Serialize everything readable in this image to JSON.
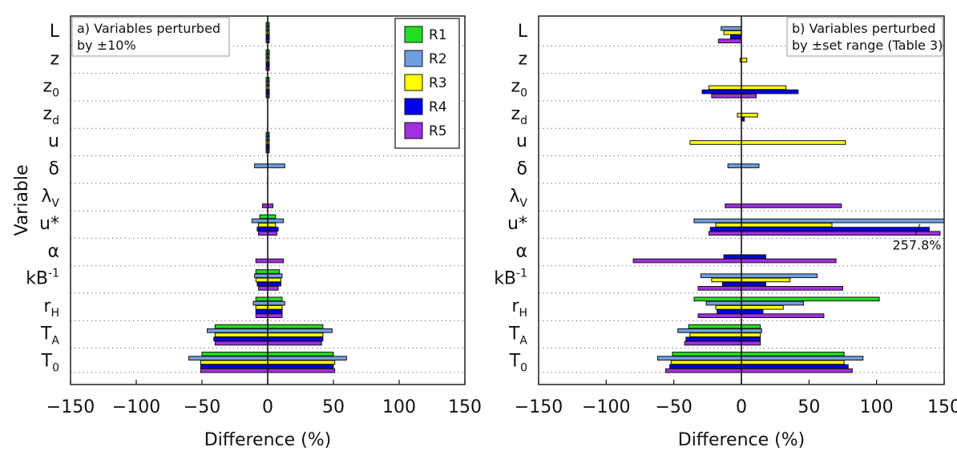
{
  "chart_data": [
    {
      "type": "bar",
      "orientation": "horizontal",
      "annotation_lines": [
        "a) Variables perturbed",
        "by ±10%"
      ],
      "xlabel": "Difference (%)",
      "ylabel": "Variable",
      "xlim": [
        -150,
        150
      ],
      "xticks": [
        -150,
        -100,
        -50,
        0,
        50,
        100,
        150
      ],
      "grid": "dotted horizontal separators",
      "legend_position": "top-right",
      "variables": [
        {
          "base": "L",
          "sub": "",
          "sup": ""
        },
        {
          "base": "z",
          "sub": "",
          "sup": ""
        },
        {
          "base": "z",
          "sub": "0",
          "sup": ""
        },
        {
          "base": "z",
          "sub": "d",
          "sup": ""
        },
        {
          "base": "u",
          "sub": "",
          "sup": ""
        },
        {
          "base": "δ",
          "sub": "",
          "sup": ""
        },
        {
          "base": "λ",
          "sub": "V",
          "sup": ""
        },
        {
          "base": "u*",
          "sub": "",
          "sup": ""
        },
        {
          "base": "α",
          "sub": "",
          "sup": ""
        },
        {
          "base": "kB",
          "sub": "",
          "sup": "-1"
        },
        {
          "base": "r",
          "sub": "H",
          "sup": ""
        },
        {
          "base": "T",
          "sub": "A",
          "sup": ""
        },
        {
          "base": "T",
          "sub": "0",
          "sup": ""
        }
      ],
      "series": [
        {
          "name": "R1",
          "color": "#22dd22",
          "ranges": [
            [
              -1,
              1
            ],
            [
              -1,
              1
            ],
            [
              -1,
              1
            ],
            [
              0,
              0
            ],
            [
              -1,
              1
            ],
            [
              0,
              0
            ],
            [
              0,
              0
            ],
            [
              -6,
              6
            ],
            [
              0,
              0
            ],
            [
              -9,
              9
            ],
            [
              -9,
              11
            ],
            [
              -40,
              42
            ],
            [
              -50,
              50
            ]
          ]
        },
        {
          "name": "R2",
          "color": "#6ea0e0",
          "ranges": [
            [
              -1,
              1
            ],
            [
              -1,
              1
            ],
            [
              -1,
              1
            ],
            [
              0,
              0
            ],
            [
              -1,
              1
            ],
            [
              -10,
              13
            ],
            [
              0,
              0
            ],
            [
              -12,
              12
            ],
            [
              0,
              0
            ],
            [
              -10,
              11
            ],
            [
              -11,
              13
            ],
            [
              -46,
              49
            ],
            [
              -60,
              60
            ]
          ]
        },
        {
          "name": "R3",
          "color": "#ffff00",
          "ranges": [
            [
              -1,
              1
            ],
            [
              -1,
              1
            ],
            [
              -1,
              1
            ],
            [
              0,
              0
            ],
            [
              -1,
              1
            ],
            [
              0,
              0
            ],
            [
              0,
              0
            ],
            [
              -7,
              6
            ],
            [
              0,
              0
            ],
            [
              -9,
              10
            ],
            [
              -9,
              11
            ],
            [
              -40,
              42
            ],
            [
              -51,
              51
            ]
          ]
        },
        {
          "name": "R4",
          "color": "#0000ee",
          "ranges": [
            [
              -1,
              1
            ],
            [
              -1,
              1
            ],
            [
              -1,
              1
            ],
            [
              0,
              0
            ],
            [
              -1,
              1
            ],
            [
              0,
              0
            ],
            [
              0,
              0
            ],
            [
              -8,
              8
            ],
            [
              0,
              0
            ],
            [
              -8,
              10
            ],
            [
              -9,
              11
            ],
            [
              -41,
              42
            ],
            [
              -51,
              50
            ]
          ]
        },
        {
          "name": "R5",
          "color": "#a030e0",
          "ranges": [
            [
              -1,
              1
            ],
            [
              -1,
              1
            ],
            [
              -1,
              1
            ],
            [
              0,
              0
            ],
            [
              -1,
              1
            ],
            [
              0,
              0
            ],
            [
              -4,
              4
            ],
            [
              -7,
              7
            ],
            [
              -9,
              12
            ],
            [
              -7,
              8
            ],
            [
              -9,
              11
            ],
            [
              -40,
              41
            ],
            [
              -51,
              51
            ]
          ]
        }
      ]
    },
    {
      "type": "bar",
      "orientation": "horizontal",
      "annotation_lines": [
        "b) Variables perturbed",
        "by ±set range (Table 3)"
      ],
      "xlabel": "Difference (%)",
      "xlim": [
        -150,
        150
      ],
      "xticks": [
        -150,
        -100,
        -50,
        0,
        50,
        100,
        150
      ],
      "grid": "dotted horizontal separators",
      "callout": {
        "text": "257.8%",
        "variable_index": 8
      },
      "series": [
        {
          "name": "R1",
          "color": "#22dd22",
          "ranges": [
            [
              0,
              0
            ],
            [
              0,
              0
            ],
            [
              0,
              0
            ],
            [
              0,
              0
            ],
            [
              0,
              0
            ],
            [
              0,
              0
            ],
            [
              0,
              0
            ],
            [
              0,
              0
            ],
            [
              0,
              0
            ],
            [
              0,
              0
            ],
            [
              -35,
              102
            ],
            [
              -39,
              14
            ],
            [
              -51,
              76
            ]
          ]
        },
        {
          "name": "R2",
          "color": "#6ea0e0",
          "ranges": [
            [
              -15,
              0
            ],
            [
              0,
              0
            ],
            [
              0,
              0
            ],
            [
              0,
              0
            ],
            [
              0,
              0
            ],
            [
              -10,
              13
            ],
            [
              0,
              0
            ],
            [
              -35,
              257.8
            ],
            [
              0,
              0
            ],
            [
              -30,
              56
            ],
            [
              -26,
              46
            ],
            [
              -47,
              15
            ],
            [
              -62,
              90
            ]
          ]
        },
        {
          "name": "R3",
          "color": "#ffff00",
          "ranges": [
            [
              -13,
              0
            ],
            [
              -1,
              4
            ],
            [
              -24,
              33
            ],
            [
              -3,
              12
            ],
            [
              -38,
              77
            ],
            [
              0,
              0
            ],
            [
              0,
              0
            ],
            [
              -19,
              67
            ],
            [
              0,
              0
            ],
            [
              -22,
              36
            ],
            [
              -19,
              31
            ],
            [
              -38,
              14
            ],
            [
              -52,
              76
            ]
          ]
        },
        {
          "name": "R4",
          "color": "#0000ee",
          "ranges": [
            [
              -8,
              0
            ],
            [
              0,
              0
            ],
            [
              -29,
              42
            ],
            [
              0,
              2
            ],
            [
              0,
              0
            ],
            [
              0,
              0
            ],
            [
              0,
              0
            ],
            [
              -23,
              139
            ],
            [
              -13,
              18
            ],
            [
              -14,
              18
            ],
            [
              -18,
              16
            ],
            [
              -41,
              14
            ],
            [
              -53,
              79
            ]
          ]
        },
        {
          "name": "R5",
          "color": "#a030e0",
          "ranges": [
            [
              -17,
              0
            ],
            [
              0,
              0
            ],
            [
              -22,
              11
            ],
            [
              0,
              0
            ],
            [
              0,
              0
            ],
            [
              0,
              0
            ],
            [
              -12,
              74
            ],
            [
              -24,
              147
            ],
            [
              -80,
              70
            ],
            [
              -32,
              75
            ],
            [
              -32,
              61
            ],
            [
              -42,
              14
            ],
            [
              -56,
              82
            ]
          ]
        }
      ]
    }
  ]
}
